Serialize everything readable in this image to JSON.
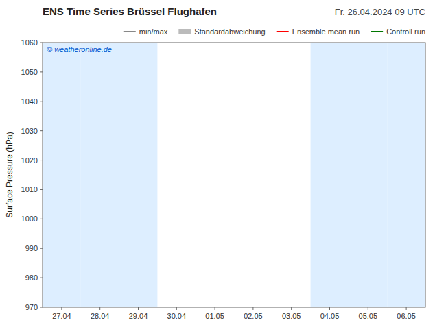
{
  "chart_data": {
    "type": "line",
    "title": "ENS Time Series Brüssel Flughafen",
    "subtitle": "Fr. 26.04.2024 09 UTC",
    "y_label": "Surface Pressure (hPa)",
    "annotation": "© weatheronline.de",
    "annotation_color": "#0055cc",
    "categories": [
      "27.04",
      "28.04",
      "29.04",
      "30.04",
      "01.05",
      "02.05",
      "03.05",
      "04.05",
      "05.05",
      "06.05"
    ],
    "shaded": [
      "27.04",
      "28.04",
      "29.04",
      "04.05",
      "05.05",
      "06.05"
    ],
    "shaded_color": "#ddeeff",
    "series": [
      {
        "name": "min/max",
        "color": "#888888",
        "type": "line",
        "values": [
          null,
          null,
          null,
          null,
          null,
          null,
          null,
          null,
          null,
          null
        ]
      },
      {
        "name": "Standardabweichung",
        "color": "#bbbbbb",
        "type": "area",
        "values": [
          null,
          null,
          null,
          null,
          null,
          null,
          null,
          null,
          null,
          null
        ]
      },
      {
        "name": "Ensemble mean run",
        "color": "#ff0000",
        "type": "line",
        "values": [
          null,
          null,
          null,
          null,
          null,
          null,
          null,
          null,
          null,
          null
        ]
      },
      {
        "name": "Controll run",
        "color": "#007700",
        "type": "line",
        "values": [
          null,
          null,
          null,
          null,
          null,
          null,
          null,
          null,
          null,
          null
        ]
      }
    ],
    "ylim": [
      970,
      1060
    ],
    "yticks": [
      970,
      980,
      990,
      1000,
      1010,
      1020,
      1030,
      1040,
      1050,
      1060
    ],
    "grid": false,
    "legend": "upper right"
  }
}
